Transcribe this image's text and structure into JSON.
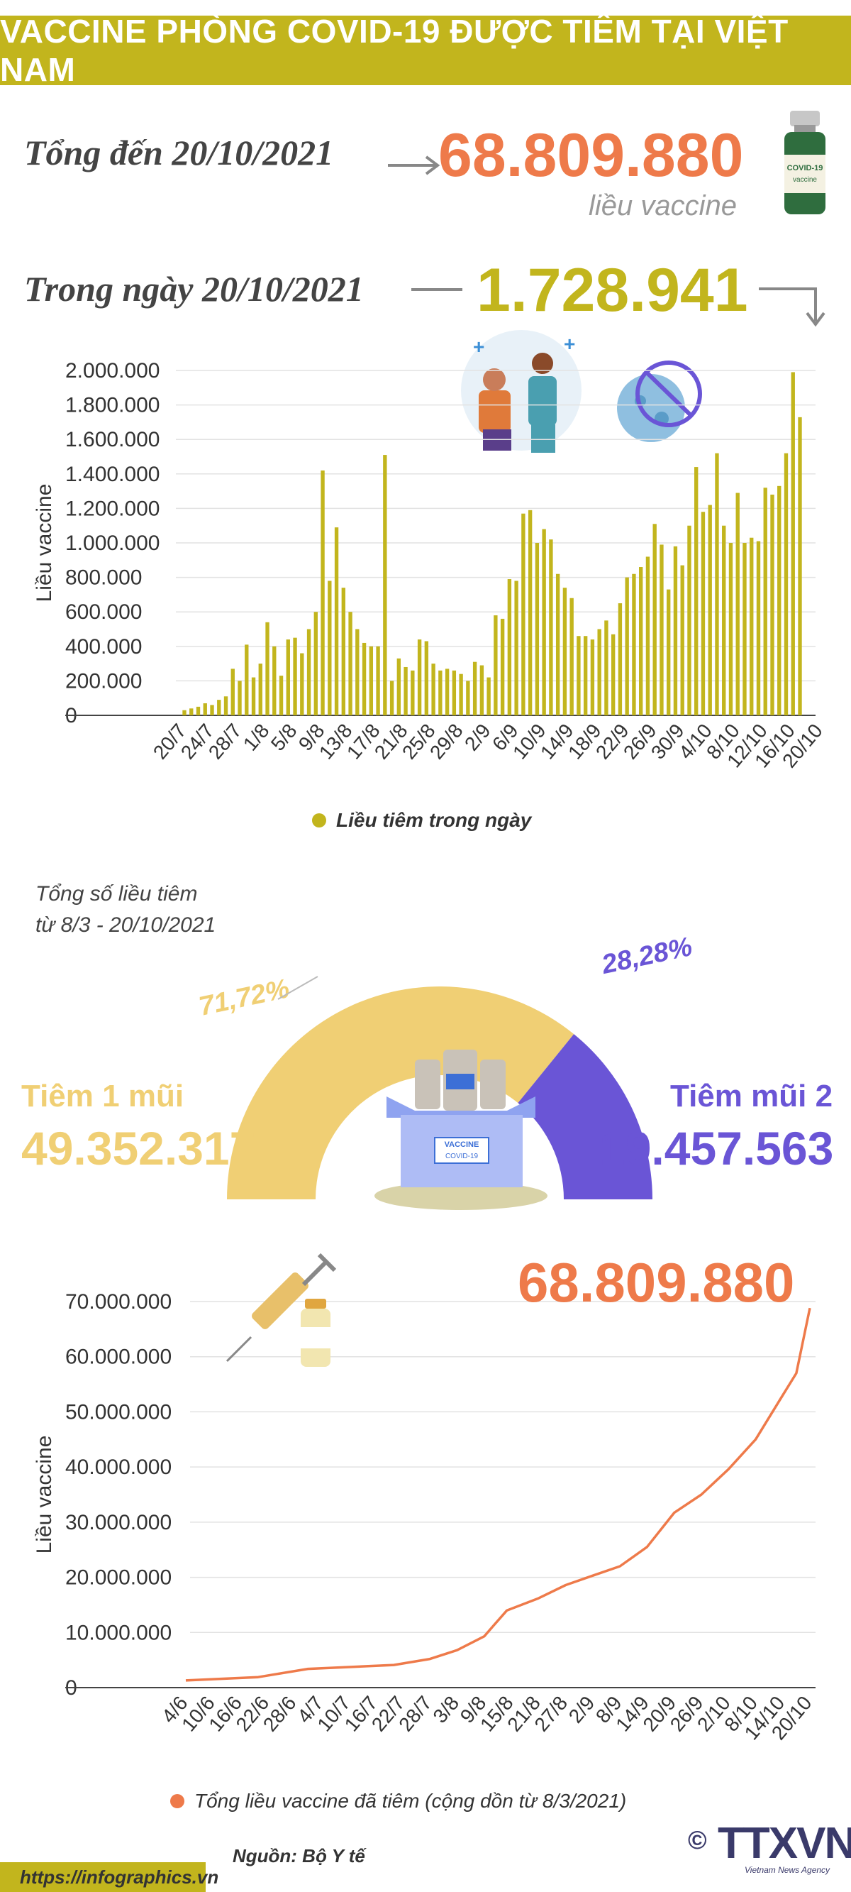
{
  "header": {
    "title": "VACCINE PHÒNG COVID-19 ĐƯỢC TIÊM TẠI VIỆT NAM"
  },
  "summary": {
    "total_label": "Tổng đến 20/10/2021",
    "total_value": "68.809.880",
    "total_unit": "liều vaccine",
    "daily_label": "Trong ngày 20/10/2021",
    "daily_value": "1.728.941",
    "vial_label": "COVID-19 vaccine"
  },
  "donut": {
    "heading_line1": "Tổng số liều tiêm",
    "heading_line2": "từ 8/3 - 20/10/2021",
    "dose1_label": "Tiêm 1 mũi",
    "dose1_value": "49.352.317",
    "dose1_pct": "71,72%",
    "dose2_label": "Tiêm mũi 2",
    "dose2_value": "19.457.563",
    "dose2_pct": "28,28%",
    "colors": {
      "dose1": "#f0cf74",
      "dose2": "#6a55d6"
    },
    "box_label": "VACCINE",
    "box_sublabel": "COVID-19"
  },
  "footer": {
    "source": "Nguồn: Bộ Y tế",
    "url": "https://infographics.vn",
    "logo": "TTXVN",
    "logo_sub": "Vietnam News Agency",
    "copyright": "©"
  },
  "chart_data": [
    {
      "type": "bar",
      "ylabel": "Liều vaccine",
      "ylim": [
        0,
        2000000
      ],
      "yticks": [
        "2.000.000",
        "1.800.000",
        "1.600.000",
        "1.400.000",
        "1.200.000",
        "1.000.000",
        "800.000",
        "600.000",
        "400.000",
        "200.000",
        "0"
      ],
      "xticks": [
        "20/7",
        "24/7",
        "28/7",
        "1/8",
        "5/8",
        "9/8",
        "13/8",
        "17/8",
        "21/8",
        "25/8",
        "29/8",
        "2/9",
        "6/9",
        "10/9",
        "14/9",
        "18/9",
        "22/9",
        "26/9",
        "30/9",
        "4/10",
        "8/10",
        "12/10",
        "16/10",
        "20/10"
      ],
      "legend": "Liều tiêm trong ngày",
      "color": "#c2b51d",
      "start_date": "2021-07-20",
      "values": [
        30000,
        40000,
        50000,
        70000,
        60000,
        90000,
        110000,
        270000,
        200000,
        410000,
        220000,
        300000,
        540000,
        400000,
        230000,
        440000,
        450000,
        360000,
        500000,
        600000,
        1420000,
        780000,
        1090000,
        740000,
        600000,
        500000,
        420000,
        400000,
        400000,
        1510000,
        200000,
        330000,
        280000,
        260000,
        440000,
        430000,
        300000,
        260000,
        270000,
        260000,
        240000,
        200000,
        310000,
        290000,
        220000,
        580000,
        560000,
        790000,
        780000,
        1170000,
        1190000,
        1000000,
        1080000,
        1020000,
        820000,
        740000,
        680000,
        460000,
        460000,
        440000,
        500000,
        550000,
        470000,
        650000,
        800000,
        820000,
        860000,
        920000,
        1110000,
        990000,
        730000,
        980000,
        870000,
        1100000,
        1440000,
        1180000,
        1220000,
        1520000,
        1100000,
        1000000,
        1290000,
        1000000,
        1030000,
        1010000,
        1320000,
        1280000,
        1330000,
        1520000,
        1990000,
        1728941
      ]
    },
    {
      "type": "line",
      "ylabel": "Liều vaccine",
      "ylim": [
        0,
        70000000
      ],
      "yticks": [
        "70.000.000",
        "60.000.000",
        "50.000.000",
        "40.000.000",
        "30.000.000",
        "20.000.000",
        "10.000.000",
        "0"
      ],
      "xticks": [
        "4/6",
        "10/6",
        "16/6",
        "22/6",
        "28/6",
        "4/7",
        "10/7",
        "16/7",
        "22/7",
        "28/7",
        "3/8",
        "9/8",
        "15/8",
        "21/8",
        "27/8",
        "2/9",
        "8/9",
        "14/9",
        "20/9",
        "26/9",
        "2/10",
        "8/10",
        "14/10",
        "20/10"
      ],
      "legend": "Tổng liều vaccine đã tiêm (cộng dồn từ 8/3/2021)",
      "color": "#ee7a4a",
      "headline": "68.809.880",
      "points": [
        [
          "2021-06-04",
          1300000
        ],
        [
          "2021-06-20",
          1900000
        ],
        [
          "2021-07-01",
          3400000
        ],
        [
          "2021-07-20",
          4100000
        ],
        [
          "2021-07-28",
          5200000
        ],
        [
          "2021-08-03",
          6800000
        ],
        [
          "2021-08-09",
          9300000
        ],
        [
          "2021-08-11",
          11200000
        ],
        [
          "2021-08-14",
          14000000
        ],
        [
          "2021-08-21",
          16200000
        ],
        [
          "2021-08-27",
          18600000
        ],
        [
          "2021-09-02",
          20300000
        ],
        [
          "2021-09-08",
          22000000
        ],
        [
          "2021-09-14",
          25500000
        ],
        [
          "2021-09-20",
          31700000
        ],
        [
          "2021-09-26",
          35000000
        ],
        [
          "2021-10-02",
          39600000
        ],
        [
          "2021-10-08",
          45000000
        ],
        [
          "2021-10-14",
          53000000
        ],
        [
          "2021-10-17",
          57000000
        ],
        [
          "2021-10-20",
          68809880
        ]
      ]
    }
  ]
}
